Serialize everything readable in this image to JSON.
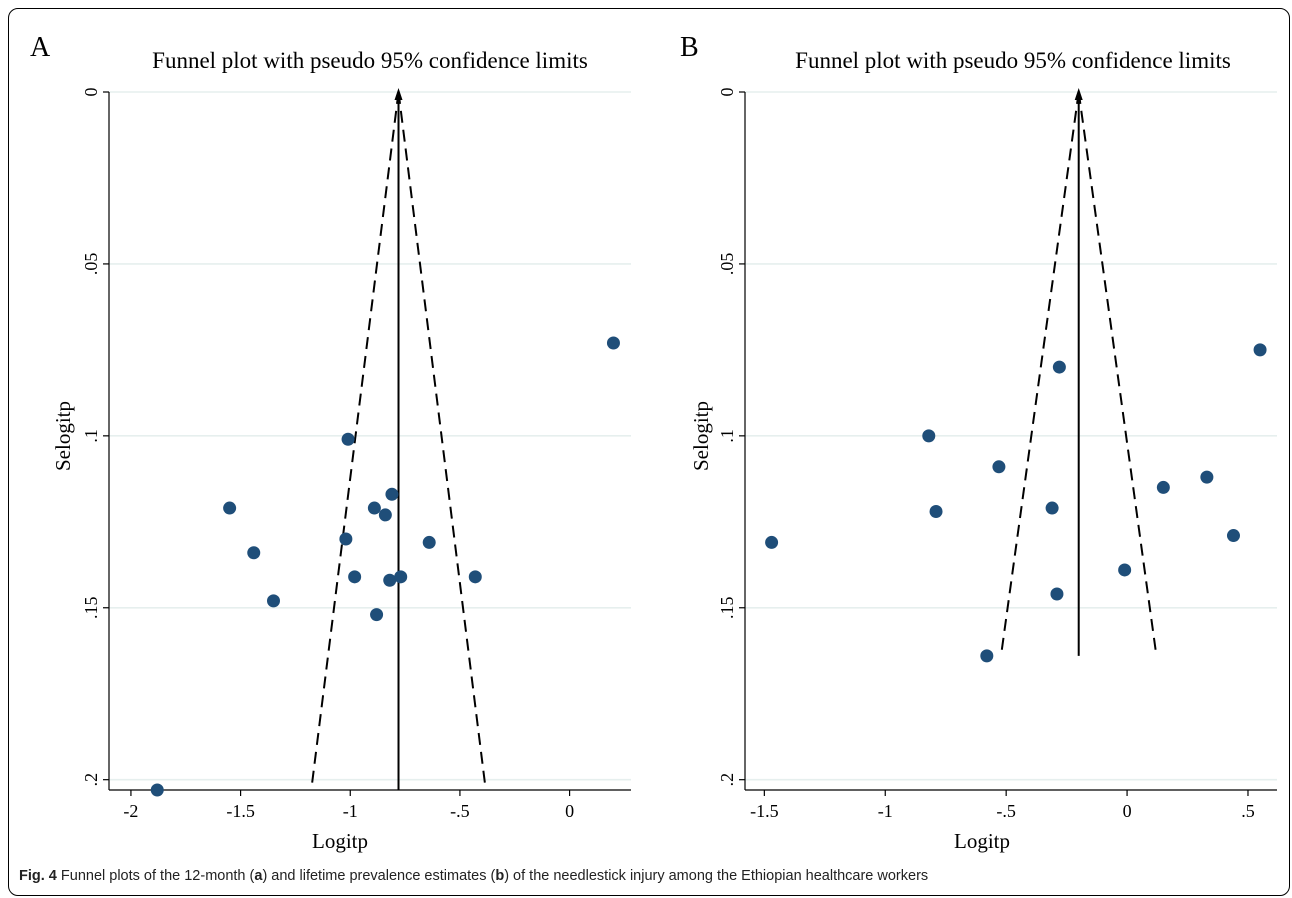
{
  "chart_data": [
    {
      "type": "scatter",
      "panel_label": "A",
      "title": "Funnel plot with pseudo 95% confidence limits",
      "xlabel": "Logitp",
      "ylabel": "Selogitp",
      "xlim": [
        -2.1,
        0.28
      ],
      "ylim": [
        0.203,
        0
      ],
      "y_reversed": true,
      "xticks": [
        -2,
        -1.5,
        -1,
        -0.5,
        0
      ],
      "xtick_labels": [
        "-2",
        "-1.5",
        "-1",
        "-.5",
        "0"
      ],
      "yticks": [
        0,
        0.05,
        0.1,
        0.15,
        0.2
      ],
      "ytick_labels": [
        "0",
        ".05",
        ".1",
        ".15",
        ".2"
      ],
      "grid": true,
      "pooled_estimate": -0.78,
      "ci_top_se": 0,
      "ci_bottom_se": 0.203,
      "points": [
        {
          "x": 0.2,
          "y": 0.073
        },
        {
          "x": -1.01,
          "y": 0.101
        },
        {
          "x": -1.55,
          "y": 0.121
        },
        {
          "x": -0.81,
          "y": 0.117
        },
        {
          "x": -0.89,
          "y": 0.121
        },
        {
          "x": -0.84,
          "y": 0.123
        },
        {
          "x": -1.02,
          "y": 0.13
        },
        {
          "x": -0.64,
          "y": 0.131
        },
        {
          "x": -1.44,
          "y": 0.134
        },
        {
          "x": -0.98,
          "y": 0.141
        },
        {
          "x": -0.82,
          "y": 0.142
        },
        {
          "x": -0.77,
          "y": 0.141
        },
        {
          "x": -0.43,
          "y": 0.141
        },
        {
          "x": -1.35,
          "y": 0.148
        },
        {
          "x": -0.88,
          "y": 0.152
        },
        {
          "x": -1.88,
          "y": 0.203
        }
      ]
    },
    {
      "type": "scatter",
      "panel_label": "B",
      "title": "Funnel plot with pseudo 95% confidence limits",
      "xlabel": "Logitp",
      "ylabel": "Selogitp",
      "xlim": [
        -1.58,
        0.62
      ],
      "ylim": [
        0.203,
        0
      ],
      "y_reversed": true,
      "xticks": [
        -1.5,
        -1,
        -0.5,
        0,
        0.5
      ],
      "xtick_labels": [
        "-1.5",
        "-1",
        "-.5",
        "0",
        ".5"
      ],
      "yticks": [
        0,
        0.05,
        0.1,
        0.15,
        0.2
      ],
      "ytick_labels": [
        "0",
        ".05",
        ".1",
        ".15",
        ".2"
      ],
      "grid": true,
      "pooled_estimate": -0.2,
      "ci_top_se": 0,
      "ci_bottom_se": 0.164,
      "points": [
        {
          "x": 0.55,
          "y": 0.075
        },
        {
          "x": -0.28,
          "y": 0.08
        },
        {
          "x": -0.82,
          "y": 0.1
        },
        {
          "x": -0.53,
          "y": 0.109
        },
        {
          "x": 0.33,
          "y": 0.112
        },
        {
          "x": 0.15,
          "y": 0.115
        },
        {
          "x": -0.31,
          "y": 0.121
        },
        {
          "x": -0.79,
          "y": 0.122
        },
        {
          "x": 0.44,
          "y": 0.129
        },
        {
          "x": -1.47,
          "y": 0.131
        },
        {
          "x": -0.01,
          "y": 0.139
        },
        {
          "x": -0.29,
          "y": 0.146
        },
        {
          "x": -0.58,
          "y": 0.164
        }
      ]
    }
  ],
  "colors": {
    "point": "#1f4e79",
    "grid": "#e6efee",
    "line": "#000000"
  },
  "caption": {
    "label": "Fig. 4",
    "part1": " Funnel plots of the 12-month (",
    "a": "a",
    "part2": ") and lifetime prevalence estimates (",
    "b": "b",
    "part3": ") of the needlestick injury among the Ethiopian healthcare workers"
  }
}
